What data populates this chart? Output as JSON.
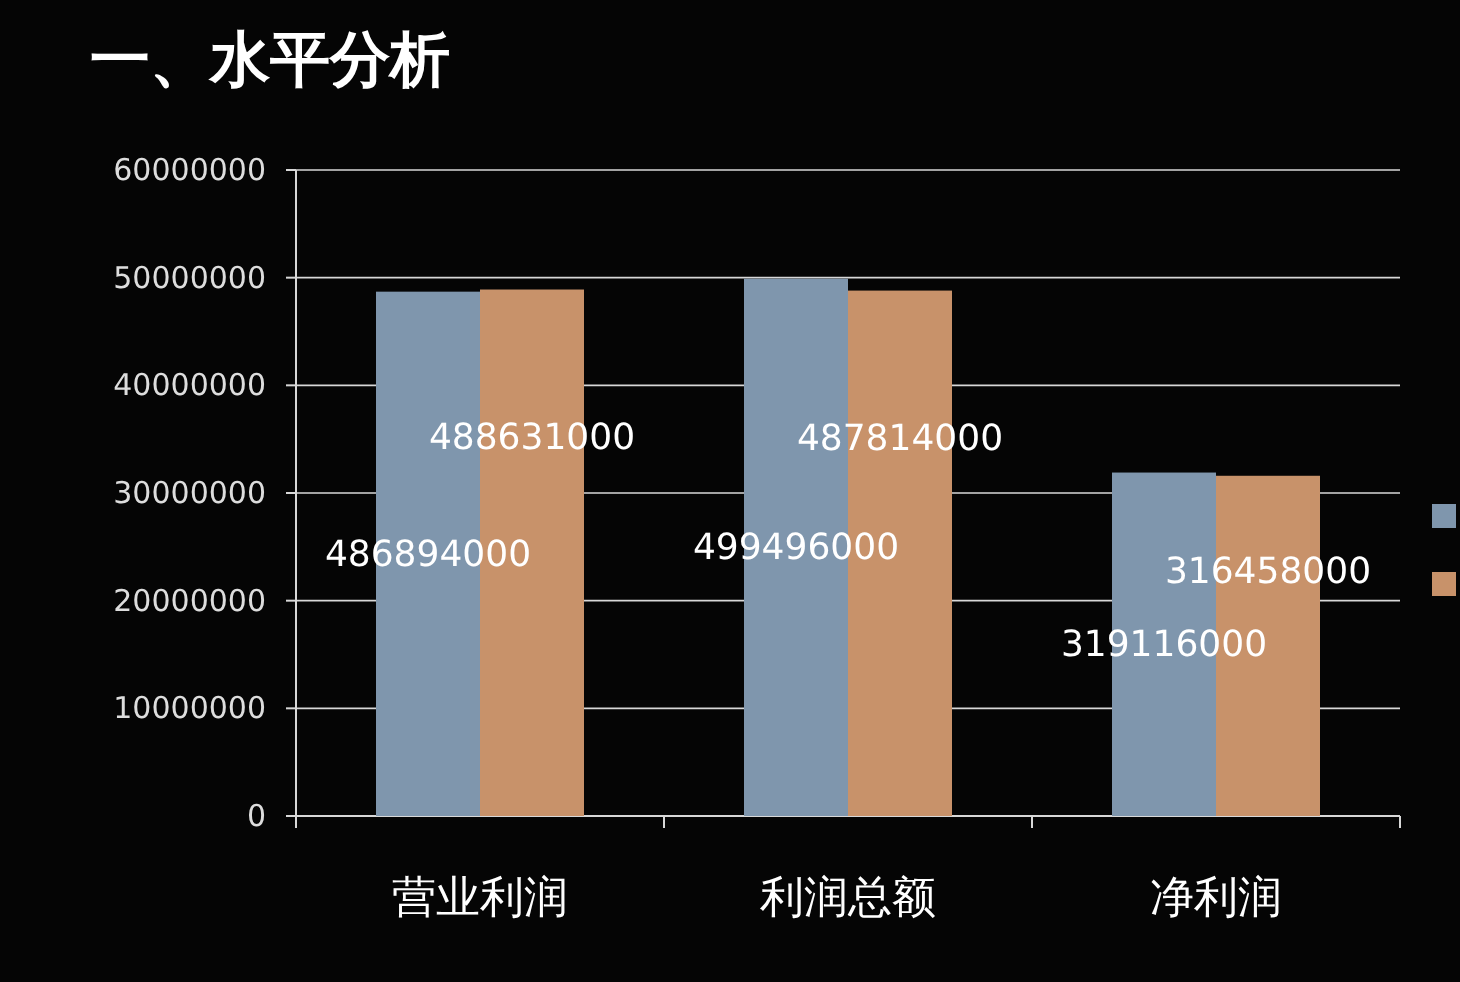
{
  "chart_data": {
    "type": "bar",
    "title": "一、水平分析",
    "categories": [
      "营业利润",
      "利润总额",
      "净利润"
    ],
    "series": [
      {
        "color": "#7f96ad",
        "values": [
          48700000,
          49900000,
          31900000
        ]
      },
      {
        "color": "#c8926a",
        "values": [
          48900000,
          48800000,
          31600000
        ]
      }
    ],
    "annotations": [
      "486894000",
      "499496000",
      "319116000",
      "488631000",
      "487814000",
      "316458000"
    ],
    "ylim": [
      0,
      60000000
    ],
    "yticks": [
      0,
      10000000,
      20000000,
      30000000,
      40000000,
      50000000,
      60000000
    ],
    "grid": "y"
  }
}
